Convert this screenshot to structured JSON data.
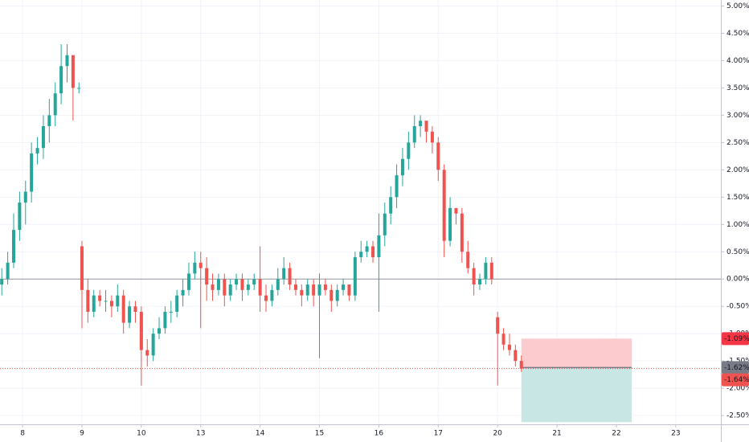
{
  "chart_data": {
    "type": "candlestick",
    "up_color": "#26a69a",
    "down_color": "#ef5350",
    "grid": true,
    "xlim": [
      -0.38,
      11.76
    ],
    "ylim": [
      -2.66,
      5.11
    ],
    "xticks": [
      {
        "value": 0,
        "label": "8"
      },
      {
        "value": 1,
        "label": "9"
      },
      {
        "value": 2,
        "label": "10"
      },
      {
        "value": 3,
        "label": "13"
      },
      {
        "value": 4,
        "label": "14"
      },
      {
        "value": 5,
        "label": "15"
      },
      {
        "value": 6,
        "label": "16"
      },
      {
        "value": 7,
        "label": "17"
      },
      {
        "value": 8,
        "label": "20"
      },
      {
        "value": 9,
        "label": "21"
      },
      {
        "value": 10,
        "label": "22"
      },
      {
        "value": 11,
        "label": "23"
      }
    ],
    "yticks": [
      {
        "value": 5,
        "label": "5.00%"
      },
      {
        "value": 4.5,
        "label": "4.50%"
      },
      {
        "value": 4,
        "label": "4.00%"
      },
      {
        "value": 3.5,
        "label": "3.50%"
      },
      {
        "value": 3,
        "label": "3.00%"
      },
      {
        "value": 2.5,
        "label": "2.50%"
      },
      {
        "value": 2,
        "label": "2.00%"
      },
      {
        "value": 1.5,
        "label": "1.50%"
      },
      {
        "value": 1,
        "label": "1.00%"
      },
      {
        "value": 0.5,
        "label": "0.50%"
      },
      {
        "value": 0,
        "label": "0.00%"
      },
      {
        "value": -0.5,
        "label": "-0.50%"
      },
      {
        "value": -1,
        "label": "-1.00%"
      },
      {
        "value": -1.5,
        "label": "-1.50%"
      },
      {
        "value": -2,
        "label": "-2.00%"
      },
      {
        "value": -2.5,
        "label": "-2.50%"
      }
    ],
    "x": [
      -0.35,
      -0.25,
      -0.15,
      -0.05,
      0.05,
      0.15,
      0.25,
      0.35,
      0.45,
      0.55,
      0.65,
      0.75,
      0.85,
      0.95,
      1.0,
      1.1,
      1.2,
      1.3,
      1.4,
      1.5,
      1.6,
      1.7,
      1.8,
      1.9,
      2.0,
      2.1,
      2.2,
      2.3,
      2.4,
      2.5,
      2.6,
      2.7,
      2.8,
      2.9,
      3.0,
      3.1,
      3.2,
      3.3,
      3.4,
      3.5,
      3.6,
      3.7,
      3.8,
      3.9,
      4.0,
      4.1,
      4.2,
      4.3,
      4.4,
      4.5,
      4.6,
      4.7,
      4.8,
      4.9,
      5.0,
      5.1,
      5.2,
      5.3,
      5.4,
      5.5,
      5.6,
      5.7,
      5.8,
      5.9,
      6.0,
      6.1,
      6.2,
      6.3,
      6.4,
      6.5,
      6.6,
      6.7,
      6.8,
      6.9,
      7.0,
      7.1,
      7.2,
      7.3,
      7.4,
      7.5,
      7.6,
      7.7,
      7.8,
      7.9,
      8.0,
      8.1,
      8.2,
      8.3,
      8.4
    ],
    "open": [
      -0.1,
      0.0,
      0.3,
      0.9,
      1.4,
      1.6,
      2.3,
      2.4,
      2.8,
      3.0,
      3.4,
      3.9,
      4.1,
      3.5,
      0.6,
      -0.2,
      -0.6,
      -0.3,
      -0.4,
      -0.4,
      -0.5,
      -0.3,
      -0.8,
      -0.5,
      -0.6,
      -1.3,
      -1.4,
      -1.0,
      -0.9,
      -0.6,
      -0.6,
      -0.3,
      -0.2,
      0.1,
      0.3,
      0.2,
      -0.1,
      -0.2,
      0.0,
      -0.3,
      -0.1,
      0.0,
      -0.2,
      -0.1,
      0.0,
      -0.3,
      -0.4,
      -0.2,
      0.0,
      0.2,
      -0.1,
      -0.2,
      -0.3,
      -0.1,
      -0.3,
      -0.1,
      -0.2,
      -0.4,
      -0.2,
      -0.1,
      -0.3,
      0.4,
      0.5,
      0.6,
      0.4,
      0.8,
      1.2,
      1.5,
      1.9,
      2.2,
      2.5,
      2.8,
      2.9,
      2.7,
      2.5,
      2.0,
      0.7,
      1.3,
      1.2,
      0.5,
      0.2,
      -0.1,
      0.0,
      0.3,
      -0.7,
      -1.0,
      -1.2,
      -1.3,
      -1.5
    ],
    "high": [
      0.2,
      0.5,
      1.2,
      1.6,
      1.8,
      2.5,
      2.6,
      3.0,
      3.3,
      3.6,
      4.3,
      4.3,
      4.1,
      3.6,
      0.7,
      0.0,
      -0.2,
      -0.2,
      -0.2,
      -0.3,
      -0.1,
      -0.2,
      -0.4,
      -0.4,
      -0.5,
      -1.1,
      -0.9,
      -0.7,
      -0.5,
      -0.4,
      -0.2,
      0.0,
      0.3,
      0.5,
      0.5,
      0.4,
      0.1,
      0.1,
      0.1,
      0.0,
      0.1,
      0.1,
      0.0,
      0.1,
      0.6,
      -0.1,
      -0.1,
      0.2,
      0.4,
      0.3,
      0.0,
      -0.1,
      0.0,
      0.0,
      0.1,
      0.0,
      -0.1,
      -0.1,
      0.0,
      -0.1,
      0.5,
      0.7,
      0.7,
      0.7,
      1.2,
      1.4,
      1.7,
      2.1,
      2.4,
      2.7,
      3.0,
      3.0,
      2.9,
      2.8,
      2.6,
      2.1,
      1.5,
      1.3,
      1.3,
      0.7,
      0.3,
      0.1,
      0.4,
      0.4,
      -0.6,
      -0.9,
      -1.0,
      -1.2,
      -1.4
    ],
    "low": [
      -0.3,
      -0.1,
      0.2,
      0.7,
      1.0,
      1.4,
      2.1,
      2.2,
      2.5,
      2.8,
      3.2,
      3.6,
      2.9,
      3.4,
      -0.9,
      -0.8,
      -0.7,
      -0.5,
      -0.6,
      -0.7,
      -0.6,
      -1.0,
      -0.9,
      -0.8,
      -1.95,
      -1.6,
      -1.5,
      -1.1,
      -1.0,
      -0.8,
      -0.7,
      -0.5,
      -0.3,
      0.0,
      -0.9,
      -0.4,
      -0.4,
      -0.3,
      -0.5,
      -0.4,
      -0.2,
      -0.4,
      -0.3,
      -0.2,
      -0.6,
      -0.6,
      -0.5,
      -0.3,
      -0.1,
      -0.2,
      -0.3,
      -0.5,
      -0.4,
      -0.5,
      -1.45,
      -0.3,
      -0.6,
      -0.5,
      -0.3,
      -0.4,
      -0.4,
      0.3,
      0.4,
      0.3,
      -0.6,
      0.6,
      1.0,
      1.3,
      1.7,
      2.0,
      2.4,
      2.6,
      2.5,
      2.3,
      1.8,
      0.4,
      0.6,
      1.0,
      0.3,
      0.1,
      -0.3,
      -0.2,
      -0.1,
      -0.1,
      -1.95,
      -1.3,
      -1.4,
      -1.6,
      -1.7
    ],
    "close": [
      0.0,
      0.3,
      0.9,
      1.4,
      1.6,
      2.3,
      2.4,
      2.8,
      3.0,
      3.4,
      3.9,
      4.1,
      3.5,
      3.5,
      -0.2,
      -0.6,
      -0.3,
      -0.4,
      -0.4,
      -0.5,
      -0.3,
      -0.8,
      -0.5,
      -0.6,
      -1.3,
      -1.4,
      -1.0,
      -0.9,
      -0.6,
      -0.6,
      -0.3,
      -0.2,
      0.1,
      0.3,
      0.2,
      -0.1,
      -0.2,
      0.0,
      -0.3,
      -0.1,
      0.0,
      -0.2,
      -0.1,
      0.0,
      -0.3,
      -0.4,
      -0.2,
      0.0,
      0.2,
      -0.1,
      -0.2,
      -0.3,
      -0.1,
      -0.3,
      -0.1,
      -0.2,
      -0.4,
      -0.2,
      -0.1,
      -0.3,
      0.4,
      0.5,
      0.6,
      0.4,
      0.8,
      1.2,
      1.5,
      1.9,
      2.2,
      2.5,
      2.8,
      2.9,
      2.7,
      2.5,
      2.0,
      0.7,
      1.3,
      1.2,
      0.5,
      0.2,
      -0.1,
      0.0,
      0.3,
      0.0,
      -1.0,
      -1.2,
      -1.3,
      -1.5,
      -1.64
    ],
    "zero_line": {
      "value": 0,
      "color": "#9598a1"
    },
    "last_price": {
      "value": -1.64,
      "label": "-1.64%",
      "color": "#ef5350"
    },
    "position": {
      "x_start": 8.4,
      "x_end": 10.26,
      "entry": {
        "value": -1.62,
        "label": "-1.62%",
        "color": "#787b86"
      },
      "stop": {
        "value": -1.09,
        "label": "-1.09%",
        "color": "#f23645"
      },
      "target": -2.62,
      "stop_fill": "#fccbcd",
      "target_fill": "#c8e6e4"
    }
  }
}
